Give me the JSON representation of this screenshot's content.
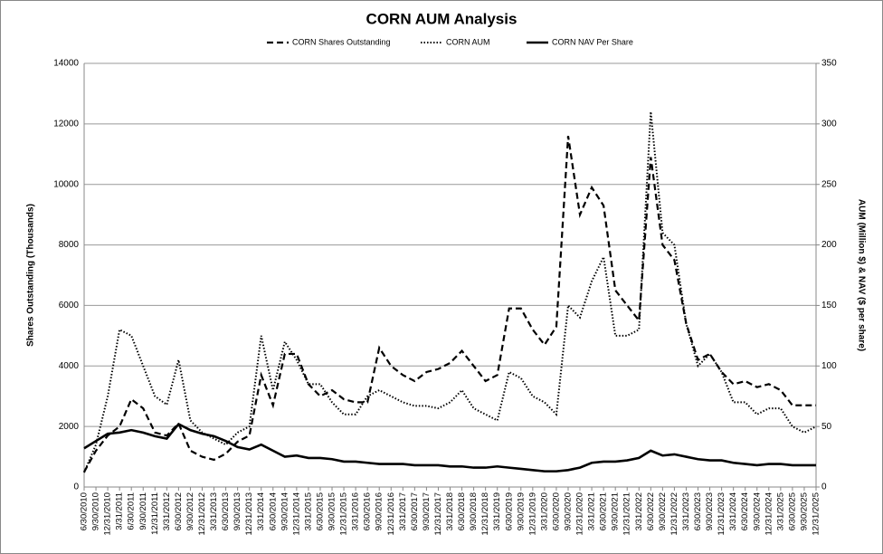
{
  "chart_data": {
    "type": "line",
    "title": "CORN AUM Analysis",
    "y_label": "Shares Outstanding (Thousands)",
    "y2_label": "AUM (Million $) & NAV ($ per share)",
    "categories": [
      "6/30/2010",
      "9/30/2010",
      "12/31/2010",
      "3/31/2011",
      "6/30/2011",
      "9/30/2011",
      "12/31/2011",
      "3/31/2012",
      "6/30/2012",
      "9/30/2012",
      "12/31/2012",
      "3/31/2013",
      "6/30/2013",
      "9/30/2013",
      "12/31/2013",
      "3/31/2014",
      "6/30/2014",
      "9/30/2014",
      "12/31/2014",
      "3/31/2015",
      "6/30/2015",
      "9/30/2015",
      "12/31/2015",
      "3/31/2016",
      "6/30/2016",
      "9/30/2016",
      "12/31/2016",
      "3/31/2017",
      "6/30/2017",
      "9/30/2017",
      "12/31/2017",
      "3/31/2018",
      "6/30/2018",
      "9/30/2018",
      "12/31/2018",
      "3/31/2019",
      "6/30/2019",
      "9/30/2019",
      "12/31/2019",
      "3/31/2020",
      "6/30/2020",
      "9/30/2020",
      "12/31/2020",
      "3/31/2021",
      "6/30/2021",
      "9/30/2021",
      "12/31/2021",
      "3/31/2022",
      "6/30/2022",
      "9/30/2022",
      "12/31/2022",
      "3/31/2023",
      "6/30/2023",
      "9/30/2023",
      "12/31/2023",
      "3/31/2024",
      "6/30/2024",
      "9/30/2024",
      "12/31/2024",
      "3/31/2025",
      "6/30/2025",
      "9/30/2025",
      "12/31/2025"
    ],
    "series": [
      {
        "name": "CORN Shares Outstanding",
        "color": "#000000",
        "style": "dashed",
        "axis": "y",
        "values": [
          500,
          1200,
          1700,
          2000,
          2900,
          2600,
          1800,
          1700,
          2100,
          1200,
          1000,
          900,
          1100,
          1500,
          1700,
          3700,
          2700,
          4400,
          4400,
          3400,
          3000,
          3200,
          2900,
          2800,
          2800,
          4600,
          4000,
          3700,
          3500,
          3800,
          3900,
          4100,
          4500,
          4000,
          3500,
          3700,
          5900,
          5900,
          5200,
          4700,
          5300,
          11600,
          9000,
          9900,
          9300,
          6500,
          6000,
          5500,
          10900,
          8000,
          7500,
          5400,
          4200,
          4400,
          3800,
          3400,
          3500,
          3300,
          3400,
          3200,
          2700,
          2700,
          2700
        ]
      },
      {
        "name": "CORN AUM",
        "color": "#000000",
        "style": "dotted",
        "axis": "y2",
        "values": [
          12,
          35,
          75,
          130,
          125,
          100,
          75,
          68,
          105,
          55,
          45,
          40,
          35,
          45,
          50,
          125,
          80,
          120,
          105,
          85,
          85,
          70,
          60,
          60,
          75,
          80,
          75,
          70,
          67,
          67,
          65,
          70,
          80,
          65,
          60,
          55,
          95,
          90,
          75,
          70,
          60,
          150,
          140,
          170,
          190,
          125,
          125,
          130,
          310,
          210,
          200,
          135,
          100,
          110,
          95,
          70,
          70,
          60,
          65,
          65,
          50,
          45,
          50
        ]
      },
      {
        "name": "CORN NAV Per Share",
        "color": "#000000",
        "style": "solid",
        "axis": "y2",
        "values": [
          32,
          38,
          44,
          45,
          47,
          45,
          42,
          40,
          52,
          47,
          44,
          42,
          38,
          33,
          31,
          35,
          30,
          25,
          26,
          24,
          24,
          23,
          21,
          21,
          20,
          19,
          19,
          19,
          18,
          18,
          18,
          17,
          17,
          16,
          16,
          17,
          16,
          15,
          14,
          13,
          13,
          14,
          16,
          20,
          21,
          21,
          22,
          24,
          30,
          26,
          27,
          25,
          23,
          22,
          22,
          20,
          19,
          18,
          19,
          19,
          18,
          18,
          18
        ]
      }
    ],
    "ylim": [
      0,
      14000
    ],
    "yticks": [
      0,
      2000,
      4000,
      6000,
      8000,
      10000,
      12000,
      14000
    ],
    "y2lim": [
      0,
      350
    ],
    "y2ticks": [
      0,
      50,
      100,
      150,
      200,
      250,
      300,
      350
    ],
    "grid": true,
    "legend": "top"
  }
}
